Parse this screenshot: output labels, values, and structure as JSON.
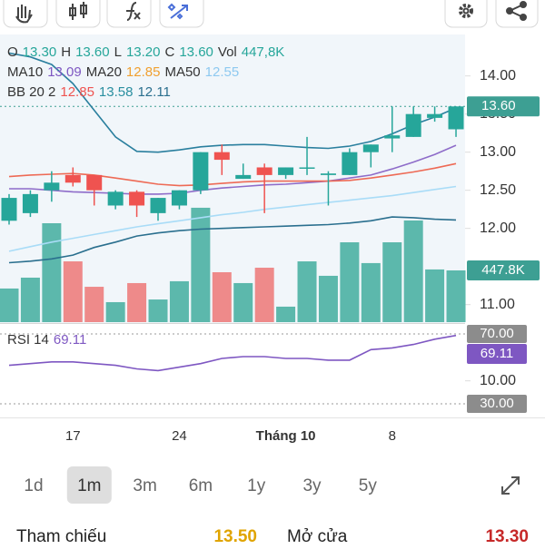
{
  "legend": [
    [
      {
        "text": "O"
      },
      {
        "text": "13.30",
        "color": "#26a69a"
      },
      {
        "text": "H"
      },
      {
        "text": "13.60",
        "color": "#26a69a"
      },
      {
        "text": "L"
      },
      {
        "text": "13.20",
        "color": "#26a69a"
      },
      {
        "text": "C"
      },
      {
        "text": "13.60",
        "color": "#26a69a"
      },
      {
        "text": "Vol"
      },
      {
        "text": "447,8K",
        "color": "#26a69a"
      }
    ],
    [
      {
        "text": "MA10"
      },
      {
        "text": "13.09",
        "color": "#7e57c2"
      },
      {
        "text": "MA20"
      },
      {
        "text": "12.85",
        "color": "#f0a030"
      },
      {
        "text": "MA50"
      },
      {
        "text": "12.55",
        "color": "#8ec9f0"
      }
    ],
    [
      {
        "text": "BB 20 2"
      },
      {
        "text": "12.85",
        "color": "#ef5350"
      },
      {
        "text": "13.58",
        "color": "#2a8fa0"
      },
      {
        "text": "12.11",
        "color": "#2a6f8e"
      }
    ]
  ],
  "rsi_legend": [
    {
      "text": "RSI 14"
    },
    {
      "text": "69.11",
      "color": "#7e57c2"
    }
  ],
  "chart_data": [
    {
      "type": "candlestick",
      "categories": [
        null,
        null,
        null,
        "17",
        null,
        null,
        null,
        null,
        "24",
        null,
        null,
        null,
        null,
        "Tháng 10",
        null,
        null,
        null,
        null,
        "8",
        null,
        null,
        null
      ],
      "open": [
        12.1,
        12.2,
        12.5,
        12.7,
        12.7,
        12.3,
        12.48,
        12.2,
        12.3,
        12.5,
        13.0,
        12.65,
        12.8,
        12.7,
        12.8,
        12.7,
        12.7,
        13.0,
        13.18,
        13.2,
        13.45,
        13.3
      ],
      "high": [
        12.45,
        12.5,
        12.75,
        12.8,
        12.7,
        12.5,
        12.5,
        12.4,
        12.5,
        13.0,
        13.1,
        12.85,
        12.85,
        12.8,
        13.2,
        12.75,
        13.05,
        13.1,
        13.6,
        13.6,
        13.6,
        13.6
      ],
      "low": [
        12.05,
        12.15,
        12.35,
        12.55,
        12.3,
        12.25,
        12.15,
        12.1,
        12.25,
        12.45,
        12.7,
        12.65,
        12.2,
        12.65,
        12.7,
        12.3,
        12.7,
        12.8,
        13.0,
        13.2,
        13.4,
        13.2
      ],
      "close": [
        12.4,
        12.45,
        12.6,
        12.6,
        12.5,
        12.48,
        12.3,
        12.4,
        12.5,
        13.0,
        12.9,
        12.7,
        12.7,
        12.8,
        12.8,
        12.72,
        13.0,
        13.1,
        13.22,
        13.5,
        13.5,
        13.6
      ],
      "value_labels": [
        null,
        null,
        null,
        null,
        null,
        null,
        null,
        null,
        null,
        null,
        null,
        null,
        null,
        null,
        null,
        null,
        null,
        null,
        null,
        null,
        null,
        "13.60"
      ],
      "up_color": "#26a69a",
      "down_color": "#ef5350",
      "ylim": [
        9.52,
        14.52
      ],
      "yticks": [
        {
          "value": 14,
          "label": "14.00"
        },
        {
          "value": 13.5,
          "label": "13.50"
        },
        {
          "value": 13,
          "label": "13.00"
        },
        {
          "value": 12.5,
          "label": "12.50"
        },
        {
          "value": 12,
          "label": "12.00"
        },
        {
          "value": 11,
          "label": "11.00"
        },
        {
          "value": 10,
          "label": "10.00"
        }
      ],
      "series": [
        {
          "name": "MA10",
          "color": "#8e6cc9",
          "values": [
            12.52,
            12.52,
            12.5,
            12.48,
            12.47,
            12.46,
            12.45,
            12.45,
            12.46,
            12.5,
            12.53,
            12.55,
            12.57,
            12.58,
            12.6,
            12.62,
            12.66,
            12.7,
            12.78,
            12.87,
            12.97,
            13.09
          ]
        },
        {
          "name": "MA20",
          "color": "#ee6a55",
          "values": [
            12.68,
            12.7,
            12.71,
            12.72,
            12.7,
            12.66,
            12.62,
            12.58,
            12.56,
            12.57,
            12.59,
            12.61,
            12.62,
            12.62,
            12.62,
            12.62,
            12.63,
            12.66,
            12.7,
            12.74,
            12.79,
            12.85
          ]
        },
        {
          "name": "MA50",
          "color": "#a9dcf7",
          "values": [
            11.7,
            11.76,
            11.82,
            11.87,
            11.92,
            11.97,
            12.02,
            12.06,
            12.1,
            12.14,
            12.18,
            12.21,
            12.25,
            12.28,
            12.31,
            12.34,
            12.37,
            12.4,
            12.43,
            12.47,
            12.51,
            12.55
          ]
        },
        {
          "name": "BB upper",
          "color": "#2a7f9e",
          "values": [
            14.3,
            14.25,
            14.15,
            13.9,
            13.55,
            13.2,
            13.01,
            13.0,
            13.03,
            13.07,
            13.09,
            13.1,
            13.1,
            13.08,
            13.06,
            13.05,
            13.08,
            13.14,
            13.24,
            13.36,
            13.46,
            13.58
          ]
        },
        {
          "name": "BB lower",
          "color": "#2a6f8e",
          "values": [
            11.55,
            11.57,
            11.6,
            11.65,
            11.75,
            11.82,
            11.9,
            11.94,
            11.97,
            11.99,
            12.0,
            12.01,
            12.02,
            12.03,
            12.04,
            12.05,
            12.07,
            12.1,
            12.15,
            12.14,
            12.12,
            12.11
          ]
        }
      ]
    },
    {
      "type": "bar",
      "values": [
        291,
        385,
        856,
        526,
        306,
        173,
        338,
        196,
        354,
        990,
        432,
        338,
        471,
        134,
        526,
        401,
        691,
        511,
        691,
        880,
        456,
        447.8
      ],
      "value_labels": [
        null,
        null,
        null,
        null,
        null,
        null,
        null,
        null,
        null,
        null,
        null,
        null,
        null,
        null,
        null,
        null,
        null,
        null,
        null,
        null,
        null,
        "447.8K"
      ],
      "up_color": "#5cb8ac",
      "down_color": "#ee8a8a",
      "ylim": [
        0,
        1500
      ]
    },
    {
      "type": "line",
      "values": [
        52,
        53,
        54,
        54,
        53,
        52,
        50,
        49,
        51,
        53,
        56,
        57,
        57,
        56,
        56,
        55,
        55,
        61,
        62,
        64,
        67,
        69.11
      ],
      "color": "#7e57c2",
      "ylim": [
        22.2,
        75.2
      ],
      "yticks": [
        {
          "value": 70,
          "label": "70.00"
        },
        {
          "value": 30,
          "label": "30.00"
        }
      ]
    }
  ],
  "periods": [
    "1d",
    "1m",
    "3m",
    "6m",
    "1y",
    "3y",
    "5y"
  ],
  "selected_period_index": 1,
  "quote": [
    {
      "label": "Tham chiếu",
      "value": "13.50",
      "color": "#e0a400"
    },
    {
      "label": "Mở cửa",
      "value": "13.30",
      "color": "#c62828"
    }
  ]
}
